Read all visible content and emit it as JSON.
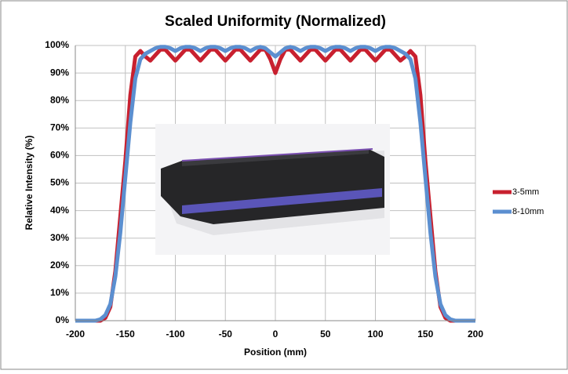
{
  "chart_data": {
    "type": "line",
    "title": "Scaled Uniformity (Normalized)",
    "x_label": "Position (mm)",
    "y_label": "Relative Intensity (%)",
    "x": [
      -200,
      -195,
      -190,
      -185,
      -180,
      -175,
      -170,
      -165,
      -160,
      -155,
      -150,
      -145,
      -140,
      -135,
      -130,
      -125,
      -120,
      -115,
      -110,
      -105,
      -100,
      -95,
      -90,
      -85,
      -80,
      -75,
      -70,
      -65,
      -60,
      -55,
      -50,
      -45,
      -40,
      -35,
      -30,
      -25,
      -20,
      -15,
      -10,
      -5,
      0,
      5,
      10,
      15,
      20,
      25,
      30,
      35,
      40,
      45,
      50,
      55,
      60,
      65,
      70,
      75,
      80,
      85,
      90,
      95,
      100,
      105,
      110,
      115,
      120,
      125,
      130,
      135,
      140,
      145,
      150,
      155,
      160,
      165,
      170,
      175,
      180,
      185,
      190,
      195,
      200
    ],
    "series": [
      {
        "name": "3-5mm",
        "color": "#c8202f",
        "values": [
          0,
          0,
          0,
          0,
          0,
          0,
          1,
          5,
          18,
          38,
          58,
          82,
          96,
          98,
          96,
          94.5,
          96.5,
          98.5,
          98.5,
          96.5,
          94.5,
          96.5,
          98.5,
          98.5,
          96.5,
          94.5,
          96.5,
          98.5,
          98.5,
          96.5,
          94.5,
          96.5,
          98.5,
          98.5,
          96.5,
          94.5,
          96.5,
          98.5,
          98.5,
          95,
          90,
          95,
          98.5,
          98.5,
          96.5,
          94.5,
          96.5,
          98.5,
          98.5,
          96.5,
          94.5,
          96.5,
          98.5,
          98.5,
          96.5,
          94.5,
          96.5,
          98.5,
          98.5,
          96.5,
          94.5,
          96.5,
          98.5,
          98.5,
          96.5,
          94.5,
          96,
          98,
          96,
          82,
          58,
          38,
          18,
          5,
          1,
          0,
          0,
          0,
          0,
          0,
          0
        ]
      },
      {
        "name": "8-10mm",
        "color": "#5b8fd0",
        "values": [
          0,
          0,
          0,
          0,
          0,
          0.5,
          2,
          6,
          16,
          32,
          52,
          72,
          88,
          95,
          97,
          98,
          99,
          99.5,
          99.5,
          99,
          98,
          99,
          99.5,
          99.5,
          99,
          98,
          99,
          99.5,
          99.5,
          99,
          98,
          99,
          99.5,
          99.5,
          99,
          98,
          99,
          99.5,
          99,
          97.5,
          96,
          97.5,
          99,
          99.5,
          99,
          98,
          99,
          99.5,
          99.5,
          99,
          98,
          99,
          99.5,
          99.5,
          99,
          98,
          99,
          99.5,
          99.5,
          99,
          98,
          99,
          99.5,
          99.5,
          99,
          98,
          97,
          95,
          88,
          72,
          52,
          32,
          16,
          6,
          2,
          0.5,
          0,
          0,
          0,
          0,
          0
        ]
      }
    ],
    "xlim": [
      -200,
      200
    ],
    "xticks": [
      -200,
      -150,
      -100,
      -50,
      0,
      50,
      100,
      150,
      200
    ],
    "ylim": [
      0,
      100
    ],
    "yticks": [
      {
        "value": 0,
        "label": "0%"
      },
      {
        "value": 10,
        "label": "10%"
      },
      {
        "value": 20,
        "label": "20%"
      },
      {
        "value": 30,
        "label": "30%"
      },
      {
        "value": 40,
        "label": "40%"
      },
      {
        "value": 50,
        "label": "50%"
      },
      {
        "value": 60,
        "label": "60%"
      },
      {
        "value": 70,
        "label": "70%"
      },
      {
        "value": 80,
        "label": "80%"
      },
      {
        "value": 90,
        "label": "90%"
      },
      {
        "value": 100,
        "label": "100%"
      }
    ],
    "grid": true,
    "legend": "right"
  }
}
